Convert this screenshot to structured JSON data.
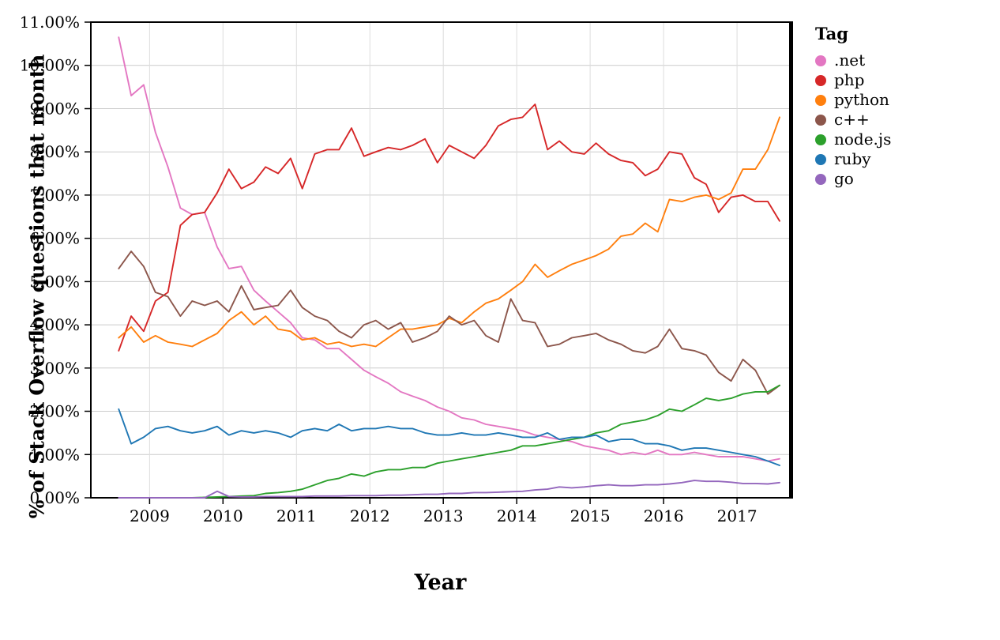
{
  "chart_data": {
    "type": "line",
    "title": "",
    "xlabel": "Year",
    "ylabel": "% of Stack Overflow questions that month",
    "legend_title": "Tag",
    "legend_position": "right",
    "grid": true,
    "xlim": [
      2008.2,
      2017.72
    ],
    "ylim": [
      0,
      11
    ],
    "x_ticks": {
      "values": [
        2009,
        2010,
        2011,
        2012,
        2013,
        2014,
        2015,
        2016,
        2017
      ],
      "labels": [
        "2009",
        "2010",
        "2011",
        "2012",
        "2013",
        "2014",
        "2015",
        "2016",
        "2017"
      ]
    },
    "y_ticks": {
      "values": [
        0,
        1,
        2,
        3,
        4,
        5,
        6,
        7,
        8,
        9,
        10,
        11
      ],
      "labels": [
        "0.00%",
        "1.00%",
        "2.00%",
        "3.00%",
        "4.00%",
        "5.00%",
        "6.00%",
        "7.00%",
        "8.00%",
        "9.00%",
        "10.00%",
        "11.00%"
      ]
    },
    "x": [
      2008.58,
      2008.75,
      2008.92,
      2009.08,
      2009.25,
      2009.42,
      2009.58,
      2009.75,
      2009.92,
      2010.08,
      2010.25,
      2010.42,
      2010.58,
      2010.75,
      2010.92,
      2011.08,
      2011.25,
      2011.42,
      2011.58,
      2011.75,
      2011.92,
      2012.08,
      2012.25,
      2012.42,
      2012.58,
      2012.75,
      2012.92,
      2013.08,
      2013.25,
      2013.42,
      2013.58,
      2013.75,
      2013.92,
      2014.08,
      2014.25,
      2014.42,
      2014.58,
      2014.75,
      2014.92,
      2015.08,
      2015.25,
      2015.42,
      2015.58,
      2015.75,
      2015.92,
      2016.08,
      2016.25,
      2016.42,
      2016.58,
      2016.75,
      2016.92,
      2017.08,
      2017.25,
      2017.42,
      2017.58
    ],
    "series": [
      {
        "name": ".net",
        "color": "#e377c2",
        "values": [
          10.65,
          9.3,
          9.55,
          8.45,
          7.65,
          6.7,
          6.55,
          6.6,
          5.8,
          5.3,
          5.35,
          4.8,
          4.55,
          4.3,
          4.05,
          3.7,
          3.65,
          3.45,
          3.45,
          3.2,
          2.95,
          2.8,
          2.65,
          2.45,
          2.35,
          2.25,
          2.1,
          2.0,
          1.85,
          1.8,
          1.7,
          1.65,
          1.6,
          1.55,
          1.45,
          1.4,
          1.35,
          1.3,
          1.2,
          1.15,
          1.1,
          1.0,
          1.05,
          1.0,
          1.1,
          1.0,
          1.0,
          1.05,
          1.0,
          0.95,
          0.95,
          0.95,
          0.9,
          0.85,
          0.9
        ]
      },
      {
        "name": "php",
        "color": "#d62728",
        "values": [
          3.4,
          4.2,
          3.85,
          4.55,
          4.75,
          6.3,
          6.55,
          6.6,
          7.05,
          7.6,
          7.15,
          7.3,
          7.65,
          7.5,
          7.85,
          7.15,
          7.95,
          8.05,
          8.05,
          8.55,
          7.9,
          8.0,
          8.1,
          8.05,
          8.15,
          8.3,
          7.75,
          8.15,
          8.0,
          7.85,
          8.15,
          8.6,
          8.75,
          8.8,
          9.1,
          8.05,
          8.25,
          8.0,
          7.95,
          8.2,
          7.95,
          7.8,
          7.75,
          7.45,
          7.6,
          8.0,
          7.95,
          7.4,
          7.25,
          6.6,
          6.95,
          7.0,
          6.85,
          6.85,
          6.4
        ]
      },
      {
        "name": "python",
        "color": "#ff7f0e",
        "values": [
          3.7,
          3.95,
          3.6,
          3.75,
          3.6,
          3.55,
          3.5,
          3.65,
          3.8,
          4.1,
          4.3,
          4.0,
          4.2,
          3.9,
          3.85,
          3.65,
          3.7,
          3.55,
          3.6,
          3.5,
          3.55,
          3.5,
          3.7,
          3.9,
          3.9,
          3.95,
          4.0,
          4.15,
          4.05,
          4.3,
          4.5,
          4.6,
          4.8,
          5.0,
          5.4,
          5.1,
          5.25,
          5.4,
          5.5,
          5.6,
          5.75,
          6.05,
          6.1,
          6.35,
          6.15,
          6.9,
          6.85,
          6.95,
          7.0,
          6.9,
          7.05,
          7.6,
          7.6,
          8.05,
          8.8
        ]
      },
      {
        "name": "c++",
        "color": "#8c564b",
        "values": [
          5.3,
          5.7,
          5.35,
          4.75,
          4.65,
          4.2,
          4.55,
          4.45,
          4.55,
          4.3,
          4.9,
          4.35,
          4.4,
          4.45,
          4.8,
          4.4,
          4.2,
          4.1,
          3.85,
          3.7,
          4.0,
          4.1,
          3.9,
          4.05,
          3.6,
          3.7,
          3.85,
          4.2,
          4.0,
          4.1,
          3.75,
          3.6,
          4.6,
          4.1,
          4.05,
          3.5,
          3.55,
          3.7,
          3.75,
          3.8,
          3.65,
          3.55,
          3.4,
          3.35,
          3.5,
          3.9,
          3.45,
          3.4,
          3.3,
          2.9,
          2.7,
          3.2,
          2.95,
          2.4,
          2.6
        ]
      },
      {
        "name": "node.js",
        "color": "#2ca02c",
        "values": [
          0.0,
          0.0,
          0.0,
          0.0,
          0.0,
          0.0,
          0.0,
          0.01,
          0.02,
          0.03,
          0.04,
          0.05,
          0.1,
          0.12,
          0.15,
          0.2,
          0.3,
          0.4,
          0.45,
          0.55,
          0.5,
          0.6,
          0.65,
          0.65,
          0.7,
          0.7,
          0.8,
          0.85,
          0.9,
          0.95,
          1.0,
          1.05,
          1.1,
          1.2,
          1.2,
          1.25,
          1.3,
          1.35,
          1.4,
          1.5,
          1.55,
          1.7,
          1.75,
          1.8,
          1.9,
          2.05,
          2.0,
          2.15,
          2.3,
          2.25,
          2.3,
          2.4,
          2.45,
          2.45,
          2.6
        ]
      },
      {
        "name": "ruby",
        "color": "#1f77b4",
        "values": [
          2.05,
          1.25,
          1.4,
          1.6,
          1.65,
          1.55,
          1.5,
          1.55,
          1.65,
          1.45,
          1.55,
          1.5,
          1.55,
          1.5,
          1.4,
          1.55,
          1.6,
          1.55,
          1.7,
          1.55,
          1.6,
          1.6,
          1.65,
          1.6,
          1.6,
          1.5,
          1.45,
          1.45,
          1.5,
          1.45,
          1.45,
          1.5,
          1.45,
          1.4,
          1.4,
          1.5,
          1.35,
          1.4,
          1.4,
          1.45,
          1.3,
          1.35,
          1.35,
          1.25,
          1.25,
          1.2,
          1.1,
          1.15,
          1.15,
          1.1,
          1.05,
          1.0,
          0.95,
          0.85,
          0.75
        ]
      },
      {
        "name": "go",
        "color": "#9467bd",
        "values": [
          0.0,
          0.0,
          0.0,
          0.0,
          0.0,
          0.0,
          0.0,
          0.0,
          0.15,
          0.03,
          0.02,
          0.02,
          0.03,
          0.03,
          0.03,
          0.03,
          0.04,
          0.04,
          0.04,
          0.05,
          0.05,
          0.05,
          0.06,
          0.06,
          0.07,
          0.08,
          0.08,
          0.1,
          0.1,
          0.12,
          0.12,
          0.13,
          0.14,
          0.15,
          0.18,
          0.2,
          0.25,
          0.23,
          0.25,
          0.28,
          0.3,
          0.28,
          0.28,
          0.3,
          0.3,
          0.32,
          0.35,
          0.4,
          0.38,
          0.38,
          0.36,
          0.33,
          0.33,
          0.32,
          0.35
        ]
      }
    ]
  }
}
